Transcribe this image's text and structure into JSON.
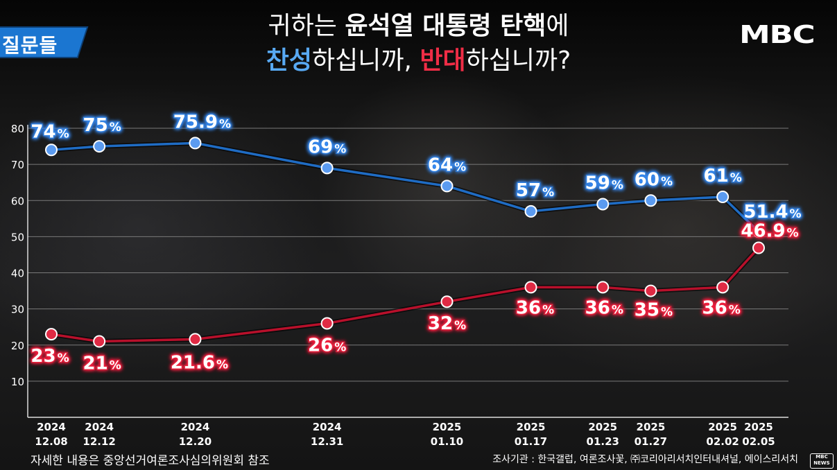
{
  "brand_tag": "질문들",
  "logo": "MBC",
  "title": {
    "line1_prefix": "귀하는 ",
    "line1_bold": "윤석열 대통령 탄핵",
    "line1_suffix": "에",
    "line2_agree": "찬성",
    "line2_mid": "하십니까, ",
    "line2_disagree": "반대",
    "line2_suffix": "하십니까?"
  },
  "footer": {
    "left": "자세한 내용은 중앙선거여론조사심의위원회 참조",
    "right": "조사기관 : 한국갤럽, 여론조사꽃, ㈜코리아리서치인터내셔널, 에이스리서치",
    "badge_line1": "MBC",
    "badge_line2": "NEWS"
  },
  "colors": {
    "agree": "#1e6fc8",
    "disagree": "#c8102e"
  },
  "chart_data": {
    "type": "line",
    "x": [
      {
        "year": "2024",
        "date": "12.08"
      },
      {
        "year": "2024",
        "date": "12.12"
      },
      {
        "year": "2024",
        "date": "12.20"
      },
      {
        "year": "2024",
        "date": "12.31"
      },
      {
        "year": "2025",
        "date": "01.10"
      },
      {
        "year": "2025",
        "date": "01.17"
      },
      {
        "year": "2025",
        "date": "01.23"
      },
      {
        "year": "2025",
        "date": "01.27"
      },
      {
        "year": "2025",
        "date": "02.02"
      },
      {
        "year": "2025",
        "date": "02.05"
      }
    ],
    "x_days": [
      0,
      4,
      12,
      23,
      33,
      40,
      46,
      50,
      56,
      59
    ],
    "series": [
      {
        "key": "agree",
        "values": [
          74,
          75,
          75.9,
          69,
          64,
          57,
          59,
          60,
          61,
          51.4
        ],
        "labels": [
          "74",
          "75",
          "75.9",
          "69",
          "64",
          "57",
          "59",
          "60",
          "61",
          "51.4"
        ]
      },
      {
        "key": "disagree",
        "values": [
          23,
          21,
          21.6,
          26,
          32,
          36,
          36,
          35,
          36,
          46.9
        ],
        "labels": [
          "23",
          "21",
          "21.6",
          "26",
          "32",
          "36",
          "36",
          "35",
          "36",
          "46.9"
        ]
      }
    ],
    "percent_sign": "%",
    "y_ticks": [
      10,
      20,
      30,
      40,
      50,
      60,
      70,
      80
    ],
    "ylim": [
      0,
      80
    ],
    "grid": true
  }
}
